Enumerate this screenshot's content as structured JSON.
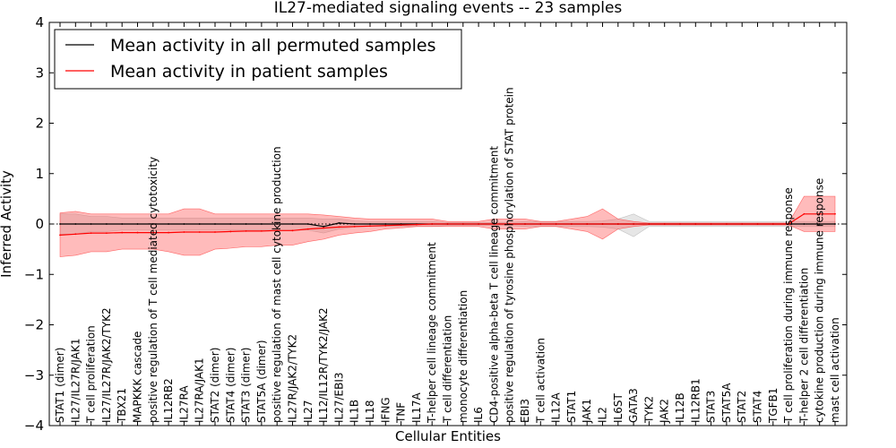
{
  "chart_data": {
    "type": "line",
    "title": "IL27-mediated signaling events -- 23 samples",
    "xlabel": "Cellular Entities",
    "ylabel": "Inferred Activity",
    "ylim": [
      -4,
      4
    ],
    "yticks": [
      4,
      3,
      2,
      1,
      0,
      -1,
      -2,
      -3,
      -4
    ],
    "ytick_labels": [
      "4",
      "3",
      "2",
      "1",
      "0",
      "−1",
      "−2",
      "−3",
      "−4"
    ],
    "zero_line": "dotted",
    "legend": {
      "location": "top-left",
      "entries": [
        {
          "label": "Mean activity in all permuted samples",
          "color": "#000000"
        },
        {
          "label": "Mean activity in patient samples",
          "color": "#ff0000"
        }
      ]
    },
    "categories": [
      "STAT1 (dimer)",
      "IL27/IL27R/JAK1",
      "T cell proliferation",
      "IL27/IL27R/JAK2/TYK2",
      "TBX21",
      "MAPKKK cascade",
      "positive regulation of T cell mediated cytotoxicity",
      "IL12RB2",
      "IL27RA",
      "IL27RA/JAK1",
      "STAT2 (dimer)",
      "STAT4 (dimer)",
      "STAT3 (dimer)",
      "STAT5A (dimer)",
      "positive regulation of mast cell cytokine production",
      "IL27R/JAK2/TYK2",
      "IL27",
      "IL12/IL12R/TYK2/JAK2",
      "IL27/EBI3",
      "IL1B",
      "IL18",
      "IFNG",
      "TNF",
      "IL17A",
      "T-helper cell lineage commitment",
      "T cell differentiation",
      "monocyte differentiation",
      "IL6",
      "CD4-positive alpha-beta T cell lineage commitment",
      "positive regulation of tyrosine phosphorylation of STAT protein",
      "EBI3",
      "T cell activation",
      "IL12A",
      "STAT1",
      "JAK1",
      "IL2",
      "IL6ST",
      "GATA3",
      "TYK2",
      "JAK2",
      "IL12B",
      "IL12RB1",
      "STAT3",
      "STAT5A",
      "STAT2",
      "STAT4",
      "TGFB1",
      "T cell proliferation during immune response",
      "T-helper 2 cell differentiation",
      "cytokine production during immune response",
      "mast cell activation"
    ],
    "series": [
      {
        "name": "Mean activity in all permuted samples",
        "color": "#000000",
        "values": [
          0.0,
          0.0,
          0.0,
          0.0,
          0.0,
          0.0,
          0.0,
          0.0,
          0.0,
          0.0,
          0.0,
          0.0,
          0.0,
          0.0,
          0.0,
          0.0,
          0.0,
          -0.05,
          0.02,
          0.0,
          0.0,
          0.0,
          0.0,
          0.0,
          0.0,
          0.0,
          0.0,
          0.0,
          0.0,
          0.0,
          0.0,
          0.0,
          0.0,
          0.0,
          0.0,
          0.0,
          0.0,
          0.0,
          0.0,
          0.0,
          0.0,
          0.0,
          0.0,
          0.0,
          0.0,
          0.0,
          0.0,
          0.0,
          0.0,
          0.0,
          0.0
        ],
        "band_upper": [
          0.2,
          0.2,
          0.15,
          0.15,
          0.12,
          0.12,
          0.12,
          0.12,
          0.12,
          0.12,
          0.12,
          0.12,
          0.12,
          0.12,
          0.12,
          0.12,
          0.12,
          0.1,
          0.1,
          0.06,
          0.05,
          0.05,
          0.05,
          0.05,
          0.05,
          0.03,
          0.03,
          0.03,
          0.03,
          0.03,
          0.05,
          0.05,
          0.05,
          0.05,
          0.05,
          0.06,
          0.1,
          0.2,
          0.05,
          0.05,
          0.05,
          0.05,
          0.05,
          0.05,
          0.05,
          0.05,
          0.05,
          0.05,
          0.05,
          0.05,
          0.05
        ],
        "band_lower": [
          -0.2,
          -0.2,
          -0.15,
          -0.15,
          -0.12,
          -0.12,
          -0.12,
          -0.12,
          -0.12,
          -0.12,
          -0.12,
          -0.12,
          -0.12,
          -0.12,
          -0.12,
          -0.12,
          -0.12,
          -0.18,
          -0.1,
          -0.06,
          -0.05,
          -0.05,
          -0.05,
          -0.05,
          -0.05,
          -0.03,
          -0.03,
          -0.03,
          -0.03,
          -0.03,
          -0.05,
          -0.05,
          -0.05,
          -0.05,
          -0.05,
          -0.06,
          -0.1,
          -0.25,
          -0.05,
          -0.05,
          -0.05,
          -0.05,
          -0.05,
          -0.05,
          -0.05,
          -0.05,
          -0.05,
          -0.05,
          -0.05,
          -0.05,
          -0.05
        ]
      },
      {
        "name": "Mean activity in patient samples",
        "color": "#ff0000",
        "values": [
          -0.22,
          -0.2,
          -0.18,
          -0.18,
          -0.17,
          -0.17,
          -0.17,
          -0.17,
          -0.16,
          -0.16,
          -0.16,
          -0.15,
          -0.14,
          -0.14,
          -0.13,
          -0.13,
          -0.1,
          -0.08,
          -0.06,
          -0.05,
          -0.04,
          -0.03,
          -0.02,
          -0.01,
          0.0,
          0.0,
          0.0,
          0.0,
          0.0,
          0.0,
          0.0,
          0.0,
          0.0,
          0.0,
          0.0,
          0.0,
          0.0,
          0.0,
          0.0,
          0.0,
          0.0,
          0.0,
          0.0,
          0.0,
          0.0,
          0.0,
          0.0,
          0.0,
          0.2,
          0.2,
          0.2
        ],
        "band_upper": [
          0.22,
          0.25,
          0.2,
          0.2,
          0.2,
          0.2,
          0.2,
          0.2,
          0.3,
          0.3,
          0.2,
          0.2,
          0.2,
          0.2,
          0.2,
          0.2,
          0.2,
          0.18,
          0.15,
          0.12,
          0.1,
          0.1,
          0.1,
          0.1,
          0.1,
          0.05,
          0.05,
          0.05,
          0.1,
          0.1,
          0.1,
          0.05,
          0.05,
          0.1,
          0.15,
          0.3,
          0.1,
          0.05,
          0.02,
          0.02,
          0.02,
          0.02,
          0.02,
          0.02,
          0.02,
          0.02,
          0.02,
          0.02,
          0.55,
          0.55,
          0.55
        ],
        "band_lower": [
          -0.65,
          -0.62,
          -0.55,
          -0.55,
          -0.5,
          -0.5,
          -0.5,
          -0.55,
          -0.62,
          -0.62,
          -0.5,
          -0.48,
          -0.45,
          -0.45,
          -0.42,
          -0.42,
          -0.35,
          -0.3,
          -0.22,
          -0.18,
          -0.15,
          -0.1,
          -0.08,
          -0.05,
          -0.05,
          -0.05,
          -0.05,
          -0.05,
          -0.1,
          -0.1,
          -0.1,
          -0.05,
          -0.05,
          -0.1,
          -0.15,
          -0.3,
          -0.1,
          -0.05,
          -0.02,
          -0.02,
          -0.02,
          -0.02,
          -0.02,
          -0.02,
          -0.02,
          -0.02,
          -0.02,
          -0.02,
          -0.15,
          -0.15,
          -0.15
        ]
      }
    ]
  }
}
